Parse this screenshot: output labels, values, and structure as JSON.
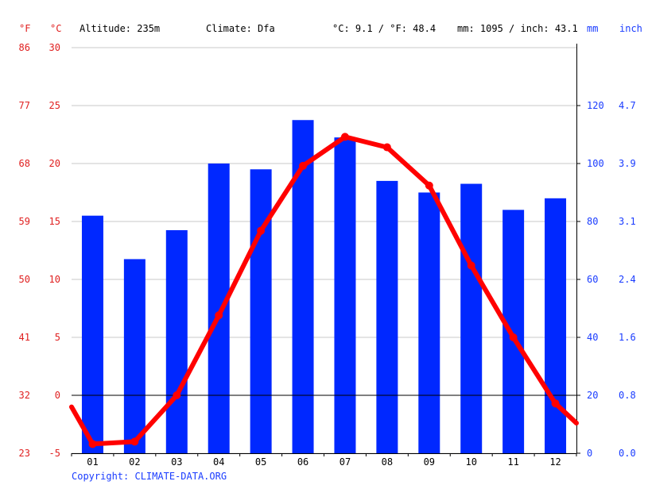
{
  "header": {
    "unit_f": "°F",
    "unit_c": "°C",
    "altitude": "Altitude: 235m",
    "climate": "Climate: Dfa",
    "temp_avg": "°C: 9.1 / °F: 48.4",
    "precip_total": "mm: 1095 / inch: 43.1",
    "unit_mm": "mm",
    "unit_inch": "inch"
  },
  "copyright": "Copyright: CLIMATE-DATA.ORG",
  "colors": {
    "temp": "#ff0000",
    "precip": "#0028ff",
    "grid": "#c8c8c8",
    "zero_line": "#000000"
  },
  "chart_data": {
    "type": "bar",
    "categories": [
      "01",
      "02",
      "03",
      "04",
      "05",
      "06",
      "07",
      "08",
      "09",
      "10",
      "11",
      "12"
    ],
    "series": [
      {
        "type": "bar",
        "axis": "right",
        "unit": "mm",
        "values": [
          82,
          67,
          77,
          100,
          98,
          115,
          109,
          94,
          90,
          93,
          84,
          88
        ]
      },
      {
        "type": "line",
        "axis": "left",
        "unit": "°C",
        "values": [
          -4.2,
          -4.0,
          0.0,
          6.9,
          14.2,
          19.8,
          22.3,
          21.4,
          18.1,
          11.2,
          5.0,
          -0.7
        ]
      }
    ],
    "temp_edge_values": [
      -1.0,
      -2.4
    ],
    "y_left_c": {
      "ticks": [
        -5,
        0,
        5,
        10,
        15,
        20,
        25,
        30
      ],
      "range": [
        -5,
        30
      ]
    },
    "y_left_f": {
      "ticks": [
        "23",
        "32",
        "41",
        "50",
        "59",
        "68",
        "77",
        "86"
      ]
    },
    "y_right_mm": {
      "ticks": [
        "0",
        "20",
        "40",
        "60",
        "80",
        "100",
        "120"
      ],
      "range": [
        0,
        140
      ]
    },
    "y_right_inch": {
      "ticks": [
        "0.0",
        "0.8",
        "1.6",
        "2.4",
        "3.1",
        "3.9",
        "4.7"
      ]
    },
    "grid": true
  }
}
